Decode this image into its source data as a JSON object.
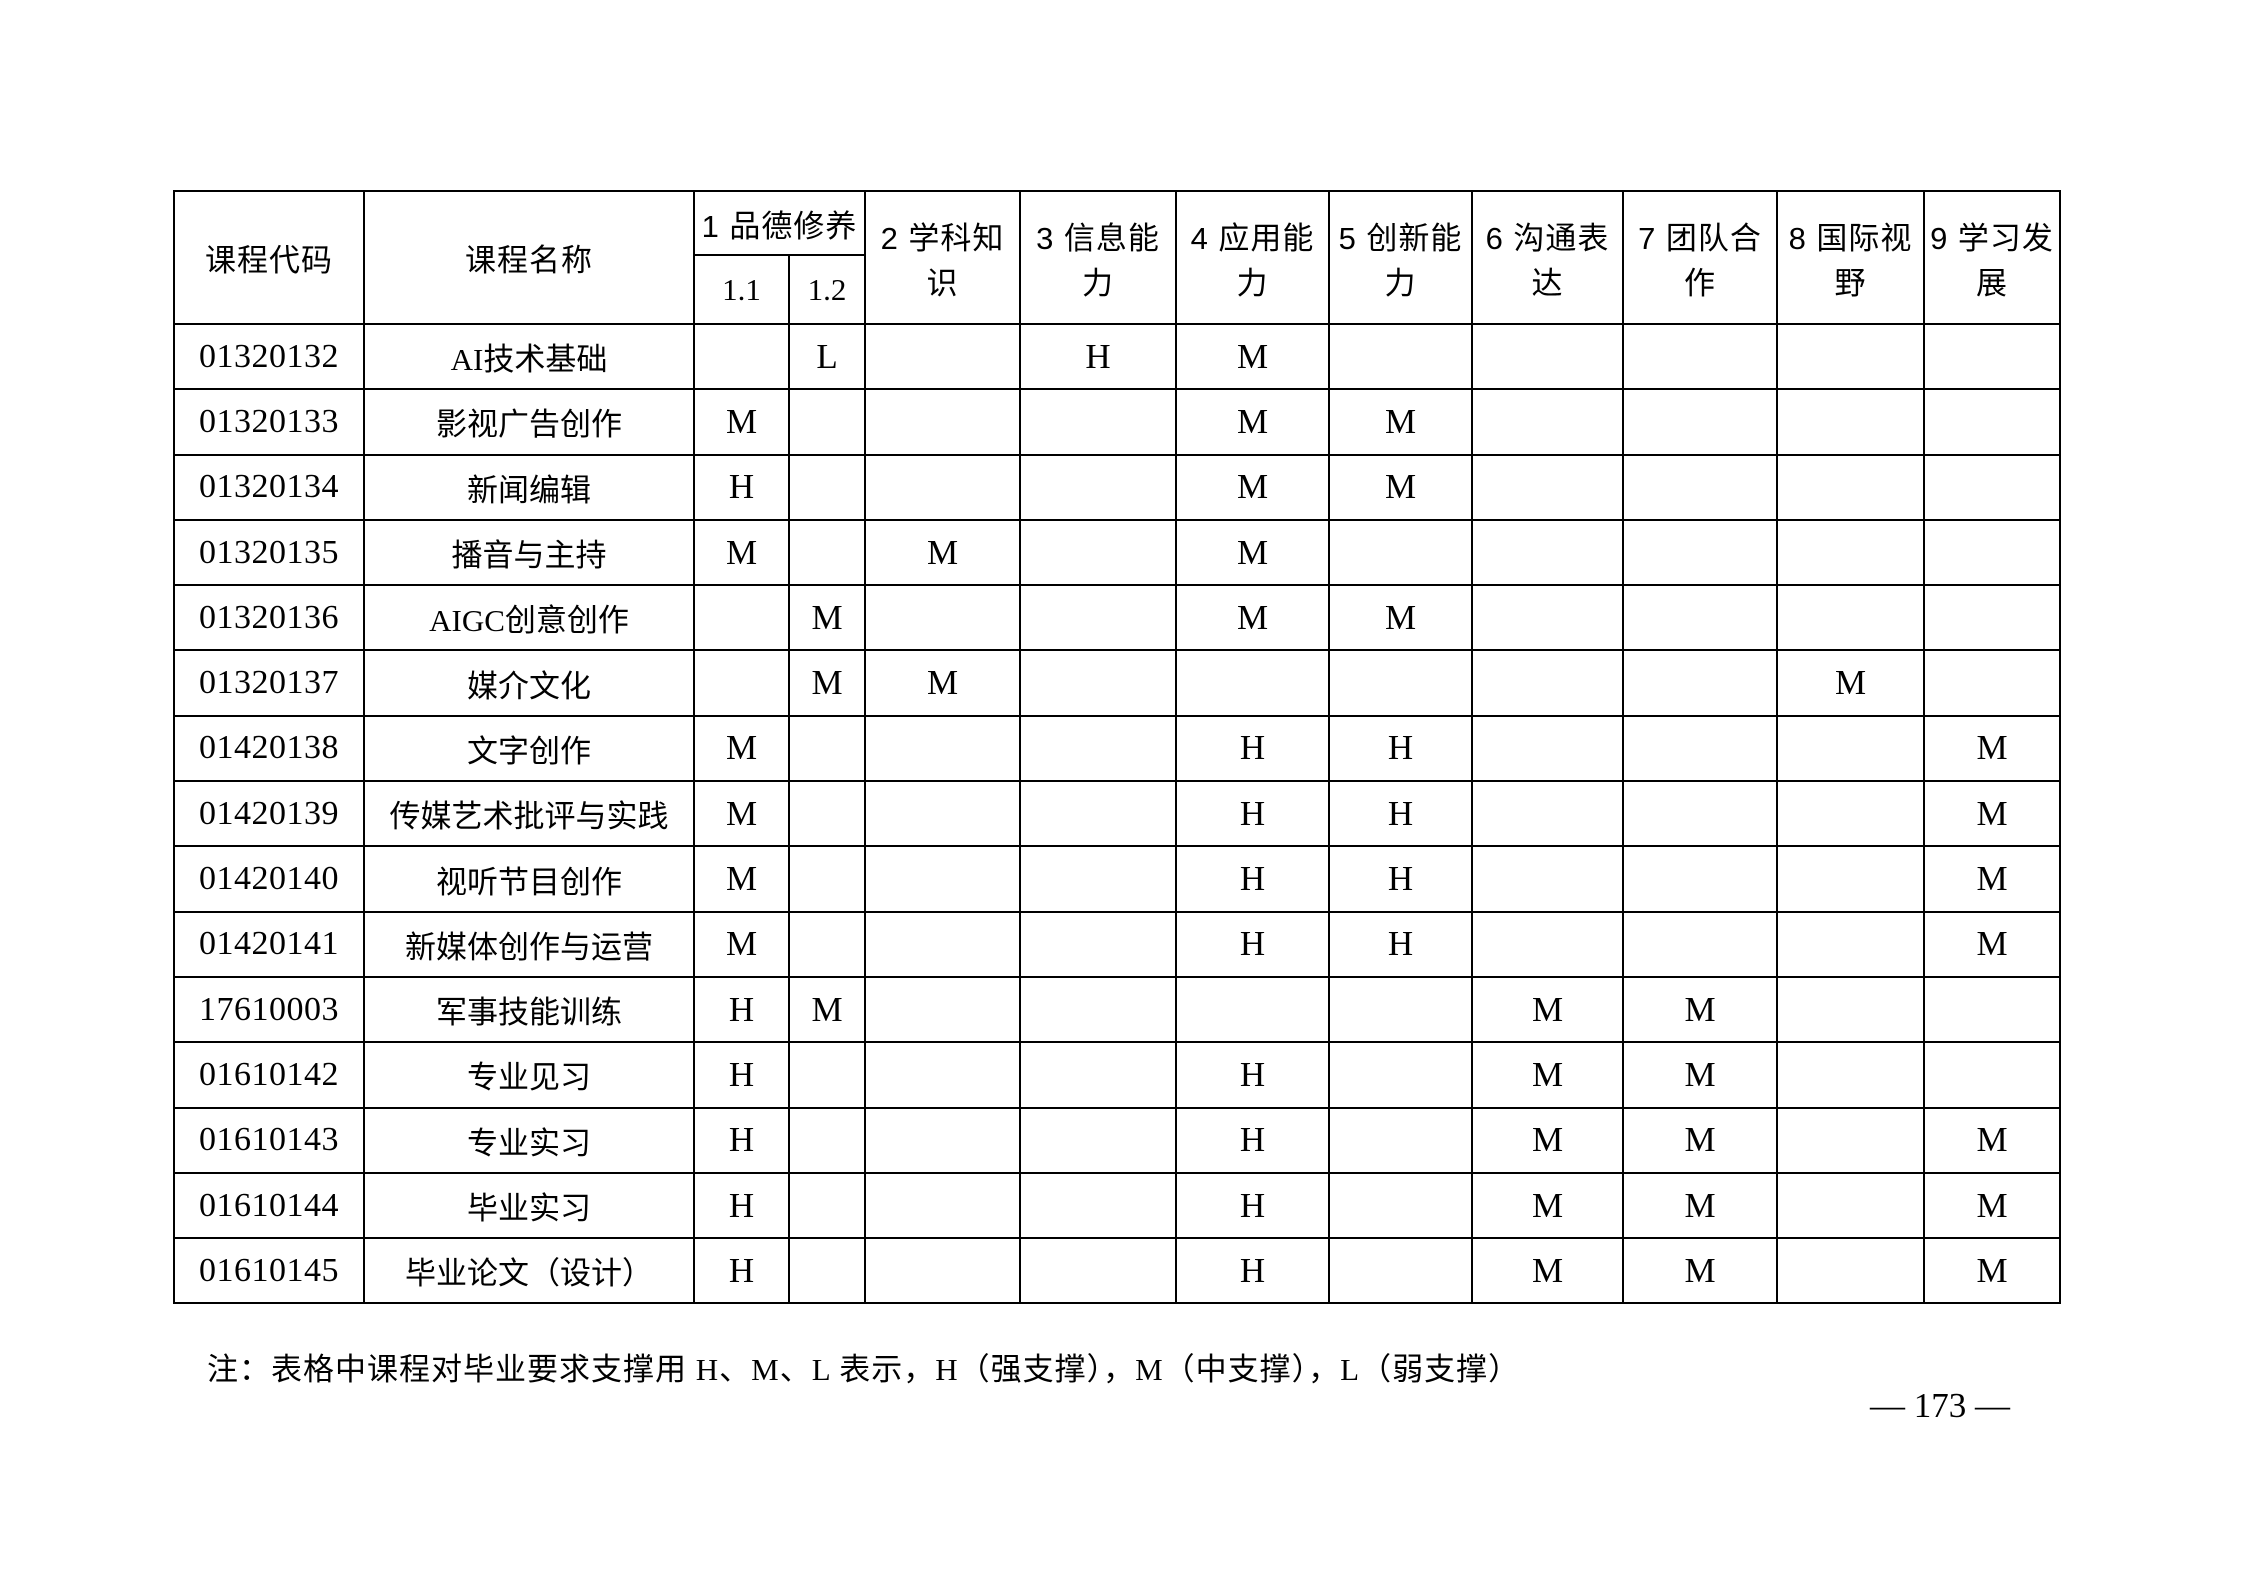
{
  "table": {
    "headers": {
      "code": "课程代码",
      "name": "课程名称",
      "group_moral": "1 品德修养",
      "sub_1_1": "1.1",
      "sub_1_2": "1.2",
      "cols": [
        "2 学科知识",
        "3 信息能力",
        "4 应用能力",
        "5 创新能力",
        "6 沟通表达",
        "7 团队合作",
        "8 国际视野",
        "9 学习发展"
      ]
    },
    "rows": [
      {
        "code": "01320132",
        "name": "AI技术基础",
        "marks": [
          "",
          "L",
          "",
          "H",
          "M",
          "",
          "",
          "",
          "",
          ""
        ]
      },
      {
        "code": "01320133",
        "name": "影视广告创作",
        "marks": [
          "M",
          "",
          "",
          "",
          "M",
          "M",
          "",
          "",
          "",
          ""
        ]
      },
      {
        "code": "01320134",
        "name": "新闻编辑",
        "marks": [
          "H",
          "",
          "",
          "",
          "M",
          "M",
          "",
          "",
          "",
          ""
        ]
      },
      {
        "code": "01320135",
        "name": "播音与主持",
        "marks": [
          "M",
          "",
          "M",
          "",
          "M",
          "",
          "",
          "",
          "",
          ""
        ]
      },
      {
        "code": "01320136",
        "name": "AIGC创意创作",
        "marks": [
          "",
          "M",
          "",
          "",
          "M",
          "M",
          "",
          "",
          "",
          ""
        ]
      },
      {
        "code": "01320137",
        "name": "媒介文化",
        "marks": [
          "",
          "M",
          "M",
          "",
          "",
          "",
          "",
          "",
          "M",
          ""
        ]
      },
      {
        "code": "01420138",
        "name": "文字创作",
        "marks": [
          "M",
          "",
          "",
          "",
          "H",
          "H",
          "",
          "",
          "",
          "M"
        ]
      },
      {
        "code": "01420139",
        "name": "传媒艺术批评与实践",
        "marks": [
          "M",
          "",
          "",
          "",
          "H",
          "H",
          "",
          "",
          "",
          "M"
        ]
      },
      {
        "code": "01420140",
        "name": "视听节目创作",
        "marks": [
          "M",
          "",
          "",
          "",
          "H",
          "H",
          "",
          "",
          "",
          "M"
        ]
      },
      {
        "code": "01420141",
        "name": "新媒体创作与运营",
        "marks": [
          "M",
          "",
          "",
          "",
          "H",
          "H",
          "",
          "",
          "",
          "M"
        ]
      },
      {
        "code": "17610003",
        "name": "军事技能训练",
        "marks": [
          "H",
          "M",
          "",
          "",
          "",
          "",
          "M",
          "M",
          "",
          ""
        ]
      },
      {
        "code": "01610142",
        "name": "专业见习",
        "marks": [
          "H",
          "",
          "",
          "",
          "H",
          "",
          "M",
          "M",
          "",
          ""
        ]
      },
      {
        "code": "01610143",
        "name": "专业实习",
        "marks": [
          "H",
          "",
          "",
          "",
          "H",
          "",
          "M",
          "M",
          "",
          "M"
        ]
      },
      {
        "code": "01610144",
        "name": "毕业实习",
        "marks": [
          "H",
          "",
          "",
          "",
          "H",
          "",
          "M",
          "M",
          "",
          "M"
        ]
      },
      {
        "code": "01610145",
        "name": "毕业论文（设计）",
        "marks": [
          "H",
          "",
          "",
          "",
          "H",
          "",
          "M",
          "M",
          "",
          "M"
        ]
      }
    ]
  },
  "footer": {
    "note": "注：表格中课程对毕业要求支撑用 H、M、L 表示，H（强支撑），M（中支撑），L（弱支撑）",
    "page_number": "—  173  —"
  }
}
